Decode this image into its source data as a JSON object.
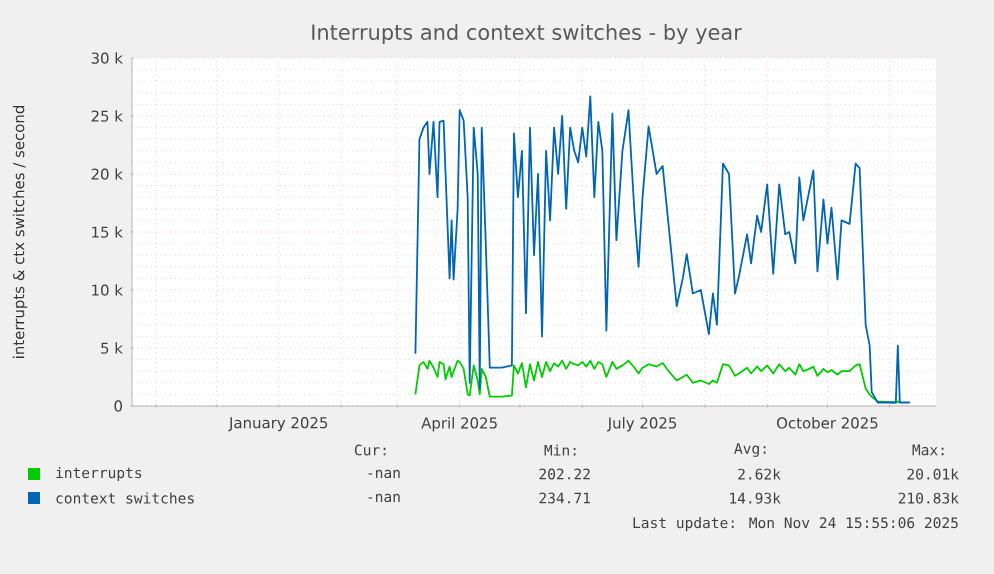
{
  "chart_data": {
    "type": "line",
    "title": "Interrupts and context switches - by year",
    "ylabel": "interrupts & ctx switches / second",
    "x": [
      "2025-03-10",
      "2025-03-12",
      "2025-03-14",
      "2025-03-16",
      "2025-03-17",
      "2025-03-19",
      "2025-03-21",
      "2025-03-22",
      "2025-03-24",
      "2025-03-25",
      "2025-03-27",
      "2025-03-28",
      "2025-03-29",
      "2025-03-31",
      "2025-04-01",
      "2025-04-03",
      "2025-04-05",
      "2025-04-06",
      "2025-04-08",
      "2025-04-10",
      "2025-04-11",
      "2025-04-12",
      "2025-04-14",
      "2025-04-16",
      "2025-04-22",
      "2025-04-27",
      "2025-04-28",
      "2025-04-30",
      "2025-05-02",
      "2025-05-04",
      "2025-05-06",
      "2025-05-08",
      "2025-05-10",
      "2025-05-12",
      "2025-05-14",
      "2025-05-16",
      "2025-05-18",
      "2025-05-20",
      "2025-05-22",
      "2025-05-24",
      "2025-05-26",
      "2025-05-28",
      "2025-05-30",
      "2025-06-01",
      "2025-06-03",
      "2025-06-05",
      "2025-06-07",
      "2025-06-09",
      "2025-06-11",
      "2025-06-13",
      "2025-06-16",
      "2025-06-18",
      "2025-06-21",
      "2025-06-24",
      "2025-06-27",
      "2025-06-29",
      "2025-07-01",
      "2025-07-04",
      "2025-07-08",
      "2025-07-11",
      "2025-07-14",
      "2025-07-18",
      "2025-07-21",
      "2025-07-23",
      "2025-07-26",
      "2025-07-30",
      "2025-08-03",
      "2025-08-05",
      "2025-08-07",
      "2025-08-10",
      "2025-08-13",
      "2025-08-16",
      "2025-08-18",
      "2025-08-22",
      "2025-08-24",
      "2025-08-27",
      "2025-08-29",
      "2025-09-01",
      "2025-09-04",
      "2025-09-07",
      "2025-09-10",
      "2025-09-12",
      "2025-09-15",
      "2025-09-17",
      "2025-09-19",
      "2025-09-22",
      "2025-09-24",
      "2025-09-26",
      "2025-09-29",
      "2025-10-01",
      "2025-10-03",
      "2025-10-06",
      "2025-10-08",
      "2025-10-12",
      "2025-10-15",
      "2025-10-17",
      "2025-10-20",
      "2025-10-22",
      "2025-10-23",
      "2025-10-26",
      "2025-11-04",
      "2025-11-05",
      "2025-11-06",
      "2025-11-11"
    ],
    "series": [
      {
        "name": "interrupts",
        "color": "#00cc00",
        "values": [
          1000,
          3500,
          3800,
          3200,
          3900,
          3300,
          2500,
          3800,
          3600,
          2300,
          3400,
          2500,
          3000,
          3900,
          3800,
          3200,
          1000,
          900,
          3500,
          2200,
          1000,
          3200,
          2500,
          800,
          800,
          900,
          3500,
          2800,
          3700,
          1600,
          3600,
          2200,
          3800,
          2500,
          3800,
          3000,
          3700,
          3400,
          3900,
          3200,
          3800,
          3600,
          3500,
          3800,
          3400,
          3900,
          3200,
          3800,
          3600,
          2500,
          3800,
          3200,
          3500,
          3900,
          3300,
          2800,
          3300,
          3600,
          3400,
          3700,
          3000,
          2200,
          2500,
          2700,
          2000,
          2200,
          1900,
          2200,
          2000,
          3600,
          3500,
          2600,
          2800,
          3300,
          2800,
          3400,
          3000,
          3500,
          2800,
          3600,
          3000,
          3300,
          2700,
          3600,
          3000,
          3200,
          3400,
          2600,
          3200,
          2900,
          3100,
          2700,
          3000,
          3000,
          3500,
          3600,
          1500,
          1000,
          800,
          400,
          300,
          400,
          300,
          null
        ]
      },
      {
        "name": "context switches",
        "color": "#0066b3",
        "values": [
          4500,
          23000,
          24000,
          24500,
          20000,
          24500,
          18000,
          24500,
          24600,
          20000,
          11000,
          16000,
          10900,
          17000,
          25500,
          24600,
          18000,
          2000,
          24000,
          20000,
          1500,
          24000,
          14000,
          3300,
          3300,
          3500,
          23500,
          18000,
          22000,
          8000,
          24000,
          13000,
          20000,
          6000,
          22000,
          16000,
          24000,
          20000,
          25000,
          17000,
          24000,
          22000,
          21000,
          24000,
          21500,
          26700,
          18000,
          24500,
          22000,
          6500,
          25200,
          14300,
          22000,
          25500,
          16600,
          12000,
          18000,
          24100,
          20000,
          20700,
          15500,
          8600,
          11000,
          13100,
          9700,
          10000,
          6200,
          9700,
          7000,
          20900,
          20000,
          9700,
          11200,
          14800,
          12300,
          16400,
          15000,
          19100,
          11400,
          19100,
          14800,
          15000,
          12300,
          19700,
          16000,
          18600,
          20300,
          11600,
          17800,
          14000,
          17100,
          10900,
          16000,
          15700,
          20900,
          20500,
          7000,
          5200,
          1200,
          300,
          300,
          5200,
          300,
          300
        ]
      }
    ],
    "xlim": [
      "2024-10-20",
      "2025-11-24"
    ],
    "xticks": [
      {
        "value": "2024-11-01",
        "label": null
      },
      {
        "value": "2024-12-01",
        "label": null
      },
      {
        "value": "2025-01-01",
        "label": "January 2025"
      },
      {
        "value": "2025-02-01",
        "label": null
      },
      {
        "value": "2025-03-01",
        "label": null
      },
      {
        "value": "2025-04-01",
        "label": "April 2025"
      },
      {
        "value": "2025-05-01",
        "label": null
      },
      {
        "value": "2025-06-01",
        "label": null
      },
      {
        "value": "2025-07-01",
        "label": "July 2025"
      },
      {
        "value": "2025-08-01",
        "label": null
      },
      {
        "value": "2025-09-01",
        "label": null
      },
      {
        "value": "2025-10-01",
        "label": "October 2025"
      },
      {
        "value": "2025-11-01",
        "label": null
      }
    ],
    "ylim": [
      0,
      30000
    ],
    "yticks": [
      0,
      {
        "value": 5000,
        "label": "5 k"
      },
      {
        "value": 10000,
        "label": "10 k"
      },
      {
        "value": 15000,
        "label": "15 k"
      },
      {
        "value": 20000,
        "label": "20 k"
      },
      {
        "value": 25000,
        "label": "25 k"
      },
      {
        "value": 30000,
        "label": "30 k"
      }
    ],
    "grid": true,
    "legend": "bottom",
    "annotations": [
      "Cur:",
      "Min:",
      "Avg:",
      "Max:",
      "-nan",
      "202.22",
      "2.62k",
      "20.01k",
      "-nan",
      "234.71",
      "14.93k",
      "210.83k",
      "Last update: Mon Nov 24 15:55:06 2025"
    ]
  }
}
